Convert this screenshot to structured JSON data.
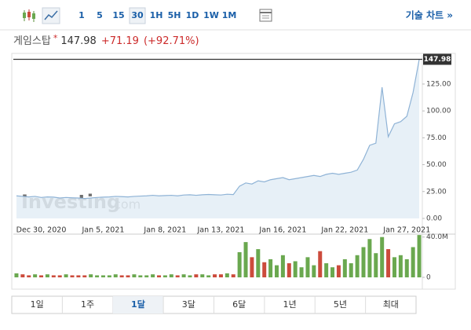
{
  "toolbar": {
    "buttons": [
      "1",
      "5",
      "15",
      "30",
      "1H",
      "5H",
      "1D",
      "1W",
      "1M"
    ],
    "active": 3,
    "link": "기술 차트 »"
  },
  "header": {
    "name": "게임스탑",
    "marker": "*",
    "price": "147.98",
    "change": "+71.19",
    "percent": "(+92.71%)"
  },
  "watermark": {
    "brand": "Investing",
    "suffix": ".com"
  },
  "chart_data": [
    {
      "type": "area",
      "color": "#8fb3d6",
      "fill": "#e3edf6",
      "categories": [
        null,
        null,
        null,
        null,
        "Dec 30, 2020",
        null,
        null,
        null,
        null,
        null,
        null,
        null,
        null,
        null,
        "Jan 5, 2021",
        null,
        null,
        null,
        null,
        null,
        null,
        null,
        null,
        null,
        "Jan 8, 2021",
        null,
        null,
        null,
        null,
        null,
        null,
        null,
        null,
        "Jan 13, 2021",
        null,
        null,
        null,
        null,
        null,
        null,
        null,
        null,
        null,
        "Jan 16, 2021",
        null,
        null,
        null,
        null,
        null,
        null,
        null,
        null,
        null,
        "Jan 22, 2021",
        null,
        null,
        null,
        null,
        null,
        null,
        null,
        null,
        null,
        "Jan 27, 2021",
        null,
        null
      ],
      "values": [
        21,
        20.5,
        20,
        20.5,
        19.5,
        20,
        19.8,
        19,
        19.5,
        19.2,
        19,
        18.5,
        19,
        19.5,
        19.8,
        20,
        20.5,
        20.3,
        20,
        20.5,
        20.8,
        21,
        21.5,
        21,
        21.3,
        21.5,
        21,
        21.8,
        22,
        21.5,
        22,
        22.3,
        22,
        21.8,
        22.5,
        22.2,
        30,
        33,
        32,
        35,
        34,
        36,
        37,
        38,
        36,
        37,
        38,
        39,
        40,
        39,
        41,
        42,
        41,
        42,
        43,
        45,
        55,
        68,
        70,
        122,
        76,
        88,
        90,
        95,
        117,
        147.98
      ],
      "ylim": [
        0,
        152
      ],
      "yticks": [
        {
          "value": 0,
          "label": "0.00"
        },
        {
          "value": 25,
          "label": "25.00"
        },
        {
          "value": 50,
          "label": "50.00"
        },
        {
          "value": 75,
          "label": "75.00"
        },
        {
          "value": 100,
          "label": "100.00"
        },
        {
          "value": 125,
          "label": "125.00"
        }
      ]
    },
    {
      "type": "bar",
      "up_color": "#6aa84f",
      "down_color": "#cc4b3c",
      "values": [
        4000000,
        3000000,
        2000000,
        3000000,
        2000000,
        3000000,
        2000000,
        2000000,
        3000000,
        2000000,
        2000000,
        2000000,
        3000000,
        2000000,
        2000000,
        2000000,
        3000000,
        2000000,
        2000000,
        3000000,
        2000000,
        2000000,
        3000000,
        2000000,
        2000000,
        3000000,
        2000000,
        3000000,
        2000000,
        3000000,
        3000000,
        2000000,
        3000000,
        3000000,
        4000000,
        3000000,
        25000000,
        35000000,
        20000000,
        28000000,
        15000000,
        18000000,
        12000000,
        22000000,
        14000000,
        16000000,
        10000000,
        20000000,
        12000000,
        26000000,
        14000000,
        10000000,
        12000000,
        18000000,
        14000000,
        22000000,
        30000000,
        38000000,
        24000000,
        40000000,
        28000000,
        20000000,
        22000000,
        18000000,
        30000000,
        42000000
      ],
      "ylim": [
        0,
        46000000
      ],
      "yticks": [
        0,
        {
          "value": 40000000,
          "label": "40.0M"
        }
      ]
    }
  ],
  "ranges": {
    "buttons": [
      "1일",
      "1주",
      "1달",
      "3달",
      "6달",
      "1년",
      "5년",
      "최대"
    ],
    "active": 2
  }
}
